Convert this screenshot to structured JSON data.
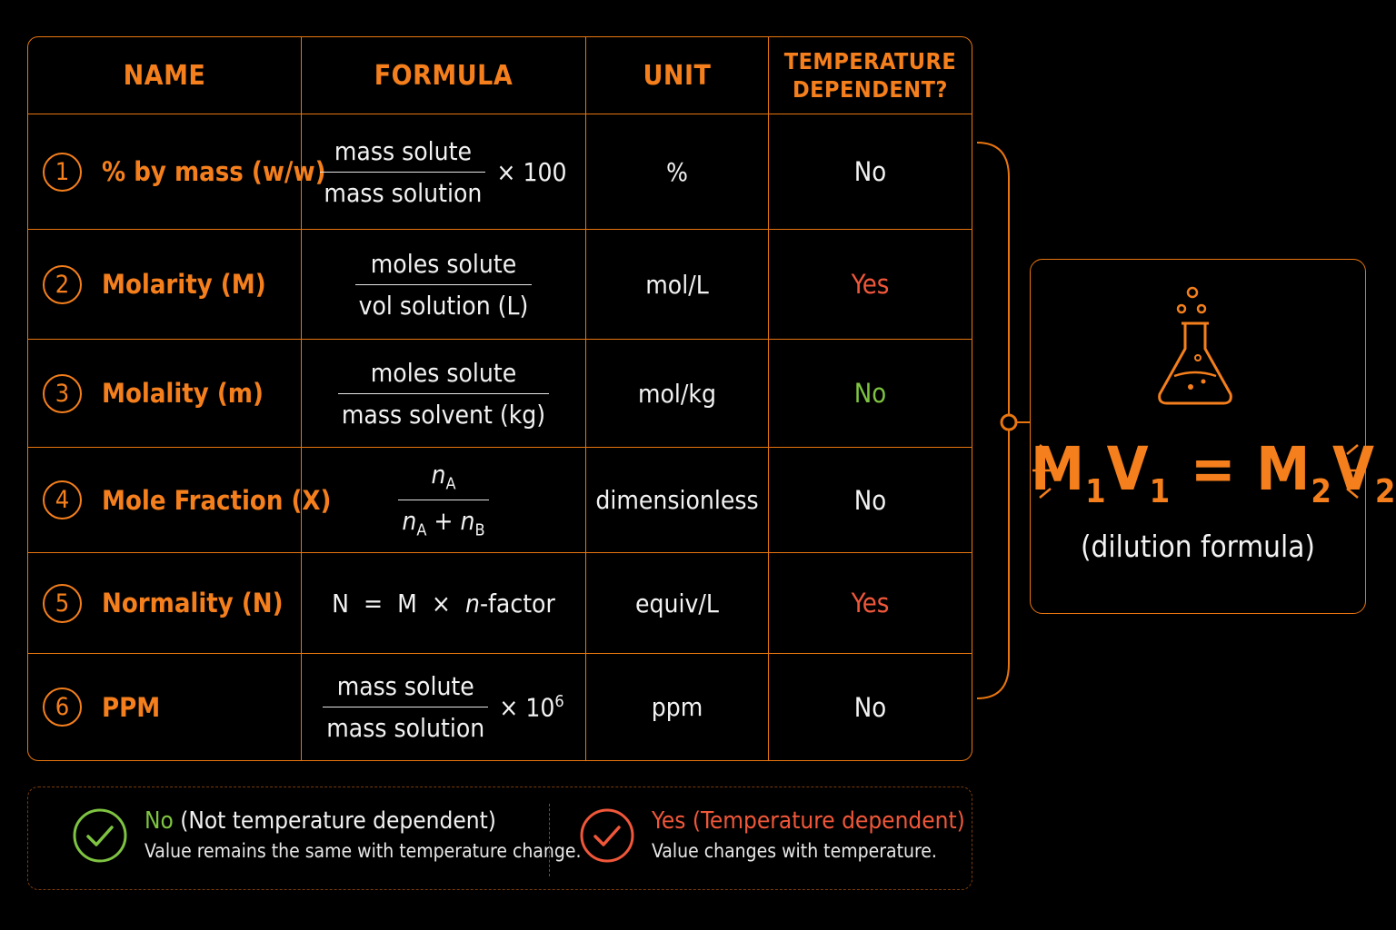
{
  "table": {
    "headers": {
      "name": "NAME",
      "formula": "FORMULA",
      "unit": "UNIT",
      "temp_line1": "TEMPERATURE",
      "temp_line2": "DEPENDENT?"
    },
    "rows": [
      {
        "num": "1",
        "name": "% by mass (w/w)",
        "formula_num": "mass solute",
        "formula_den": "mass solution",
        "formula_mult": "× 100",
        "unit": "%",
        "temp": "No"
      },
      {
        "num": "2",
        "name": "Molarity (M)",
        "formula_num": "moles solute",
        "formula_den": "vol solution (L)",
        "unit": "mol/L",
        "temp": "Yes"
      },
      {
        "num": "3",
        "name": "Molality (m)",
        "formula_num": "moles solute",
        "formula_den": "mass solvent (kg)",
        "unit": "mol/kg",
        "temp": "No"
      },
      {
        "num": "4",
        "name": "Mole Fraction (X)",
        "frac_n": "n",
        "frac_sub_a": "A",
        "frac_plus": "+",
        "frac_sub_b": "B",
        "unit": "dimensionless",
        "temp": "No"
      },
      {
        "num": "5",
        "name": "Normality (N)",
        "f_n": "N",
        "f_eq": "=",
        "f_m": "M",
        "f_times": "×",
        "f_nfac": "n",
        "f_factor": "-factor",
        "unit": "equiv/L",
        "temp": "Yes"
      },
      {
        "num": "6",
        "name": "PPM",
        "formula_num": "mass solute",
        "formula_den": "mass solution",
        "formula_mult": "× 10",
        "formula_exp": "6",
        "unit": "ppm",
        "temp": "No"
      }
    ]
  },
  "dilution": {
    "m": "M",
    "v": "V",
    "sub1": "1",
    "sub2": "2",
    "eq": "=",
    "caption": "(dilution formula)",
    "icon": "flask-icon"
  },
  "legend": {
    "no_word": "No",
    "no_title_rest": " (Not temperature dependent)",
    "no_desc": "Value remains the same with temperature change.",
    "yes_title": "Yes (Temperature dependent)",
    "yes_desc": "Value changes with temperature."
  },
  "colors": {
    "accent": "#f47f1c",
    "red": "#f0573a",
    "green": "#7ec341",
    "background": "#000000"
  }
}
